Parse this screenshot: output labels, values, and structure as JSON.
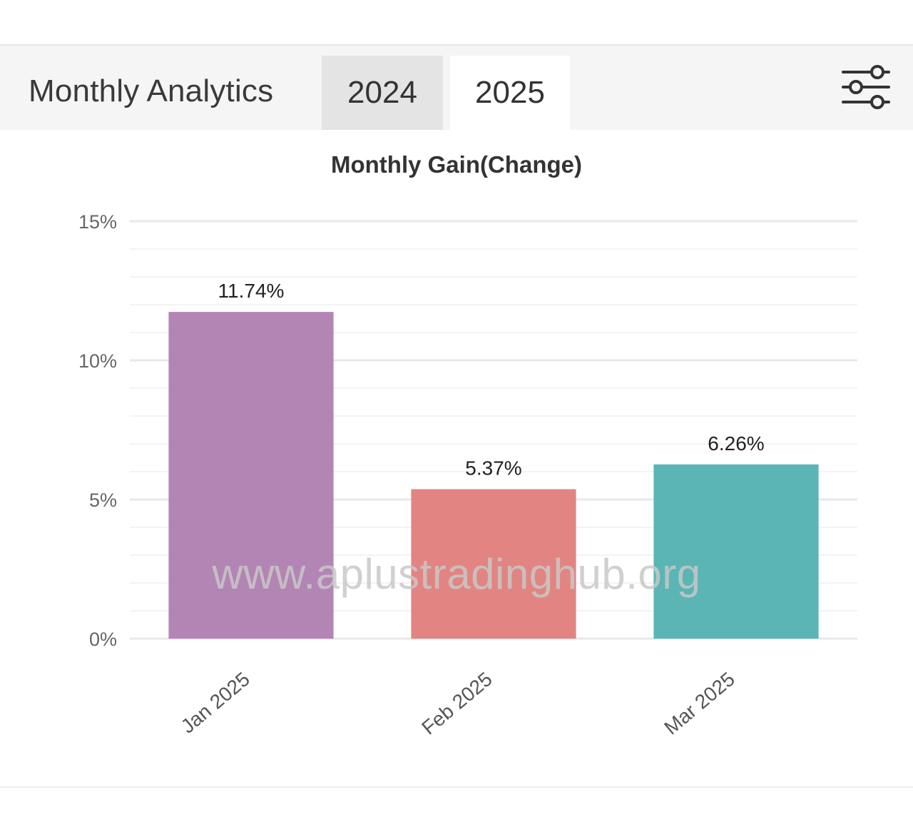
{
  "header": {
    "title": "Monthly Analytics",
    "tabs": [
      {
        "label": "2024",
        "selected": false
      },
      {
        "label": "2025",
        "selected": true
      }
    ],
    "filter_icon": "sliders-icon"
  },
  "watermark": "www.aplustradinghub.org",
  "colors": {
    "jan": "#b385b4",
    "feb": "#e28582",
    "mar": "#5bb5b5",
    "grid": "#eeeeee",
    "tab_inactive": "#e4e4e4",
    "header_bg": "#f5f5f5"
  },
  "chart_data": {
    "type": "bar",
    "title": "Monthly Gain(Change)",
    "categories": [
      "Jan 2025",
      "Feb 2025",
      "Mar 2025"
    ],
    "values": [
      11.74,
      5.37,
      6.26
    ],
    "data_labels": [
      "11.74%",
      "5.37%",
      "6.26%"
    ],
    "bar_colors": [
      "#b385b4",
      "#e28582",
      "#5bb5b5"
    ],
    "y_ticks": [
      0,
      5,
      10,
      15
    ],
    "y_tick_labels": [
      "0%",
      "5%",
      "10%",
      "15%"
    ],
    "ylim": [
      0,
      15
    ],
    "xlabel": "",
    "ylabel": "",
    "grid": true
  }
}
